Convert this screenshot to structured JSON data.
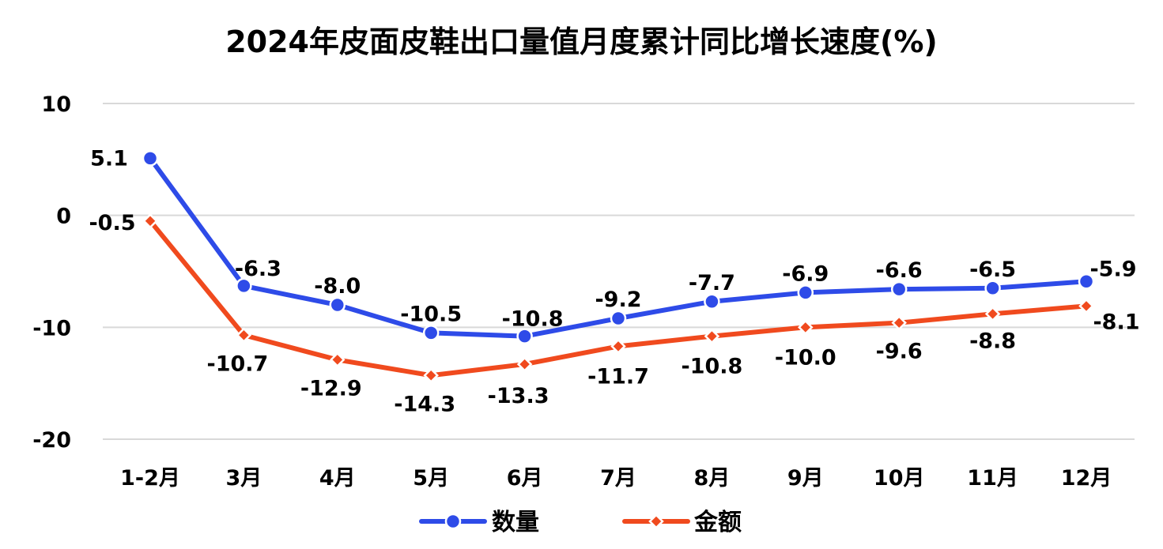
{
  "chart_data": {
    "type": "line",
    "title": "2024年皮面皮鞋出口量值月度累计同比增长速度(%)",
    "categories": [
      "1-2月",
      "3月",
      "4月",
      "5月",
      "6月",
      "7月",
      "8月",
      "9月",
      "10月",
      "11月",
      "12月"
    ],
    "ylim": [
      -20,
      10
    ],
    "yticks": [
      10,
      0,
      -10,
      -20
    ],
    "grid": true,
    "legend_position": "bottom",
    "series": [
      {
        "name": "数量",
        "color": "#2E4BE8",
        "marker": "circle",
        "values": [
          5.1,
          -6.3,
          -8.0,
          -10.5,
          -10.8,
          -9.2,
          -7.7,
          -6.9,
          -6.6,
          -6.5,
          -5.9
        ],
        "labels": [
          "5.1",
          "-6.3",
          "-8.0",
          "-10.5",
          "-10.8",
          "-9.2",
          "-7.7",
          "-6.9",
          "-6.6",
          "-6.5",
          "-5.9"
        ]
      },
      {
        "name": "金额",
        "color": "#F04A1E",
        "marker": "diamond",
        "values": [
          -0.5,
          -10.7,
          -12.9,
          -14.3,
          -13.3,
          -11.7,
          -10.8,
          -10.0,
          -9.6,
          -8.8,
          -8.1
        ],
        "labels": [
          "-0.5",
          "-10.7",
          "-12.9",
          "-14.3",
          "-13.3",
          "-11.7",
          "-10.8",
          "-10.0",
          "-9.6",
          "-8.8",
          "-8.1"
        ]
      }
    ]
  }
}
